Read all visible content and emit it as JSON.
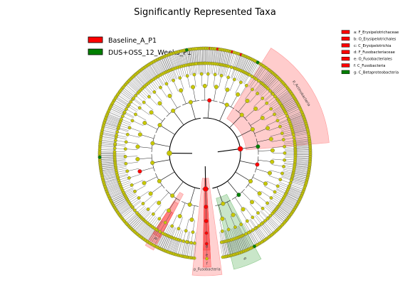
{
  "chart_data": {
    "type": "cladogram",
    "title": "Significantly Represented Taxa",
    "classes": [
      {
        "name": "Baseline_A_P1",
        "color": "#ff0000"
      },
      {
        "name": "DUS+OSS_12_Weeks_P1",
        "color": "#008000"
      }
    ],
    "biomarkers": [
      {
        "key": "a",
        "label": "a: F_Erysipelotrichaceae",
        "class": "Baseline_A_P1"
      },
      {
        "key": "b",
        "label": "b: O_Erysipelotrichales",
        "class": "Baseline_A_P1"
      },
      {
        "key": "c",
        "label": "c: C_Erysipelotrichia",
        "class": "Baseline_A_P1"
      },
      {
        "key": "d",
        "label": "d: F_Fusobacteriaceae",
        "class": "Baseline_A_P1"
      },
      {
        "key": "e",
        "label": "e: O_Fusobacteriales",
        "class": "Baseline_A_P1"
      },
      {
        "key": "f",
        "label": "f: C_Fusobacteria",
        "class": "Baseline_A_P1"
      },
      {
        "key": "g",
        "label": "g: C_Betaproteobacteria",
        "class": "DUS+OSS_12_Weeks_P1"
      }
    ],
    "highlighted_clades": [
      {
        "label": "p_Actinobacteria",
        "class": "Baseline_A_P1"
      },
      {
        "label": "p_Fusobacteria",
        "class": "Baseline_A_P1"
      },
      {
        "label": "g",
        "class": "DUS+OSS_12_Weeks_P1"
      },
      {
        "label": "c",
        "class": "Baseline_A_P1"
      },
      {
        "label": "b",
        "class": "Baseline_A_P1"
      },
      {
        "label": "a",
        "class": "Baseline_A_P1"
      },
      {
        "label": "f",
        "class": "Baseline_A_P1"
      },
      {
        "label": "e",
        "class": "Baseline_A_P1"
      },
      {
        "label": "d",
        "class": "Baseline_A_P1"
      }
    ],
    "node_color_default": "#c8c800"
  }
}
